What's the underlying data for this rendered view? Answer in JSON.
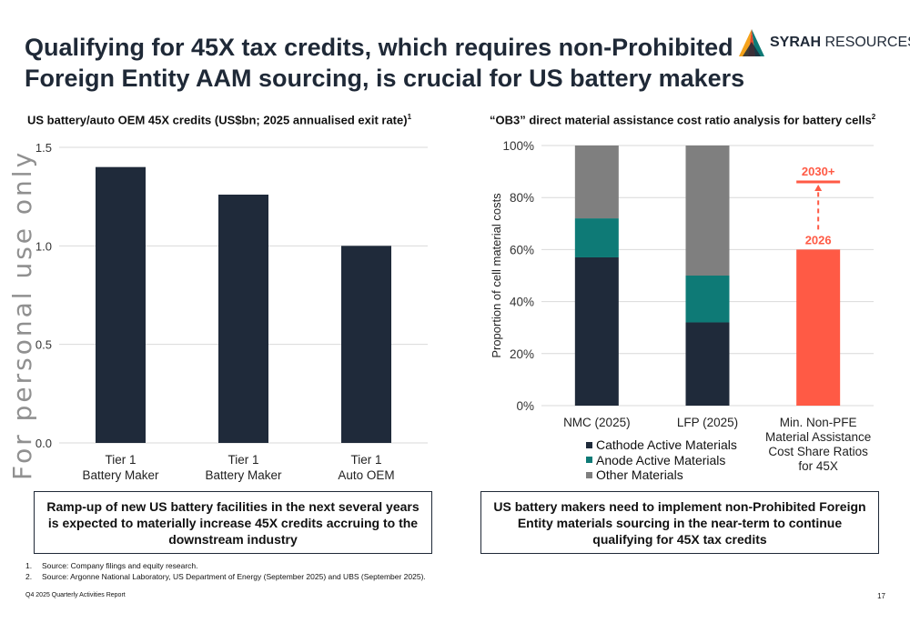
{
  "title": {
    "line1": "Qualifying for 45X tax credits, which requires non-Prohibited",
    "line2": "Foreign Entity AAM sourcing, is crucial for US battery makers"
  },
  "logo": {
    "brand_bold": "SYRAH",
    "brand_rest": " RESOURCES"
  },
  "watermark": "For personal use only",
  "left_panel": {
    "subtitle": "US battery/auto OEM 45X credits (US$bn; 2025 annualised exit rate)",
    "subtitle_sup": "1",
    "callout": "Ramp-up of new US battery facilities in the next several years is expected to materially increase 45X credits accruing to the downstream industry"
  },
  "right_panel": {
    "subtitle": "“OB3” direct material assistance cost ratio analysis for battery cells",
    "subtitle_sup": "2",
    "callout": "US battery makers need to implement non-Prohibited Foreign Entity materials sourcing in the near-term to continue qualifying for 45X tax credits"
  },
  "chart_data": [
    {
      "type": "bar",
      "categories": [
        [
          "Tier 1",
          "Battery Maker"
        ],
        [
          "Tier 1",
          "Battery Maker"
        ],
        [
          "Tier 1",
          "Auto OEM"
        ]
      ],
      "values": [
        1.4,
        1.26,
        1.0
      ],
      "yticks": [
        "0.0",
        "0.5",
        "1.0",
        "1.5"
      ],
      "ylim": [
        0,
        1.5
      ],
      "bar_color": "#1f2a3a",
      "grid": true
    },
    {
      "type": "bar",
      "stacked": true,
      "ylabel": "Proportion of cell material costs",
      "yticks": [
        "0%",
        "20%",
        "40%",
        "60%",
        "80%",
        "100%"
      ],
      "ylim": [
        0,
        100
      ],
      "categories": [
        [
          "NMC (2025)"
        ],
        [
          "LFP (2025)"
        ],
        [
          "Min. Non-PFE",
          "Material Assistance",
          "Cost Share Ratios",
          "for 45X"
        ]
      ],
      "series": [
        {
          "name": "Cathode Active Materials",
          "color": "#1f2a3a",
          "values": [
            57,
            32,
            null
          ]
        },
        {
          "name": "Anode Active Materials",
          "color": "#0e7a76",
          "values": [
            15,
            18,
            null
          ]
        },
        {
          "name": "Other Materials",
          "color": "#7f7f7f",
          "values": [
            28,
            50,
            null
          ]
        }
      ],
      "threshold": {
        "value": 60,
        "color": "#ff5a45",
        "label": "2026",
        "target_label": "2030+",
        "target_value": 86
      },
      "legend_position": "bottom"
    }
  ],
  "footnotes": [
    {
      "num": "1.",
      "text": "Source: Company filings and equity research."
    },
    {
      "num": "2.",
      "text": "Source: Argonne National Laboratory, US Department of Energy (September 2025) and UBS (September 2025)."
    }
  ],
  "footer": {
    "left": "Q4 2025 Quarterly Activities Report",
    "page": "17"
  }
}
